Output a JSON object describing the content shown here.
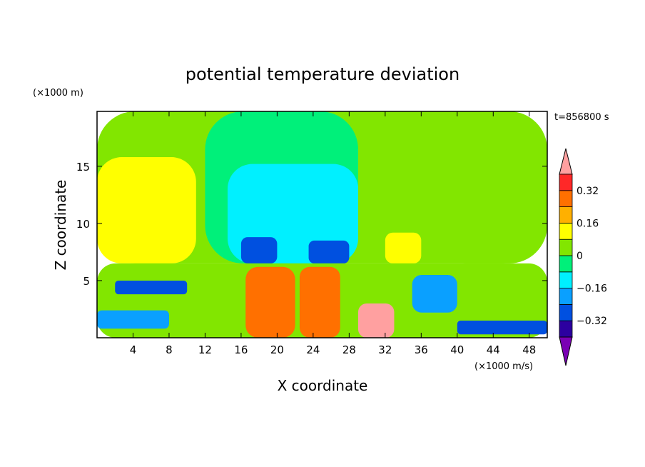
{
  "chart_data": {
    "type": "heatmap",
    "title": "potential temperature deviation",
    "xlabel": "X coordinate",
    "ylabel": "Z coordinate",
    "x_unit": "(×1000 m/s)",
    "y_unit": "(×1000 m)",
    "time_label": "t=856800 s",
    "xlim": [
      0,
      50
    ],
    "ylim": [
      0,
      19.8
    ],
    "x_ticks": [
      4,
      8,
      12,
      16,
      20,
      24,
      28,
      32,
      36,
      40,
      44,
      48
    ],
    "y_ticks": [
      5,
      10,
      15
    ],
    "colorbar": {
      "levels": [
        -0.48,
        -0.4,
        -0.32,
        -0.24,
        -0.16,
        -0.08,
        0,
        0.08,
        0.16,
        0.24,
        0.32,
        0.4,
        0.48
      ],
      "colors": [
        "#7a00b4",
        "#2c00a0",
        "#0050e0",
        "#0aa0ff",
        "#00f0ff",
        "#00f07a",
        "#82e600",
        "#ffff00",
        "#ffb000",
        "#ff7000",
        "#ff2828",
        "#ffa0a0"
      ],
      "tick_labels": [
        "0.32",
        "0.16",
        "0",
        "−0.16",
        "−0.32"
      ],
      "tick_values": [
        0.32,
        0.16,
        0,
        -0.16,
        -0.32
      ]
    },
    "regions": [
      {
        "x": [
          0,
          50
        ],
        "z": [
          6.5,
          19.8
        ],
        "value": 0.04
      },
      {
        "x": [
          0,
          11
        ],
        "z": [
          6.5,
          15.8
        ],
        "value": 0.12
      },
      {
        "x": [
          12,
          29
        ],
        "z": [
          6.5,
          19.8
        ],
        "value": -0.02
      },
      {
        "x": [
          14.5,
          29
        ],
        "z": [
          6.5,
          15.2
        ],
        "value": -0.1
      },
      {
        "x": [
          16,
          20
        ],
        "z": [
          6.5,
          8.8
        ],
        "value": -0.28
      },
      {
        "x": [
          23.5,
          28
        ],
        "z": [
          6.5,
          8.5
        ],
        "value": -0.28
      },
      {
        "x": [
          32,
          36
        ],
        "z": [
          6.5,
          9.2
        ],
        "value": 0.12
      },
      {
        "x": [
          39,
          47
        ],
        "z": [
          6.5,
          16.5
        ],
        "value": 0.04
      },
      {
        "x": [
          0,
          50
        ],
        "z": [
          0,
          6.5
        ],
        "value": 0.0
      },
      {
        "x": [
          16.5,
          22
        ],
        "z": [
          0,
          6.2
        ],
        "value": 0.28
      },
      {
        "x": [
          22.5,
          27
        ],
        "z": [
          0,
          6.2
        ],
        "value": 0.28
      },
      {
        "x": [
          29,
          33
        ],
        "z": [
          0,
          3.0
        ],
        "value": 0.44
      },
      {
        "x": [
          2,
          10
        ],
        "z": [
          3.8,
          5.0
        ],
        "value": -0.28
      },
      {
        "x": [
          0,
          8
        ],
        "z": [
          0.8,
          2.4
        ],
        "value": -0.24
      },
      {
        "x": [
          40,
          50
        ],
        "z": [
          0.3,
          1.5
        ],
        "value": -0.28
      },
      {
        "x": [
          35,
          40
        ],
        "z": [
          2.2,
          5.5
        ],
        "value": -0.2
      }
    ]
  }
}
